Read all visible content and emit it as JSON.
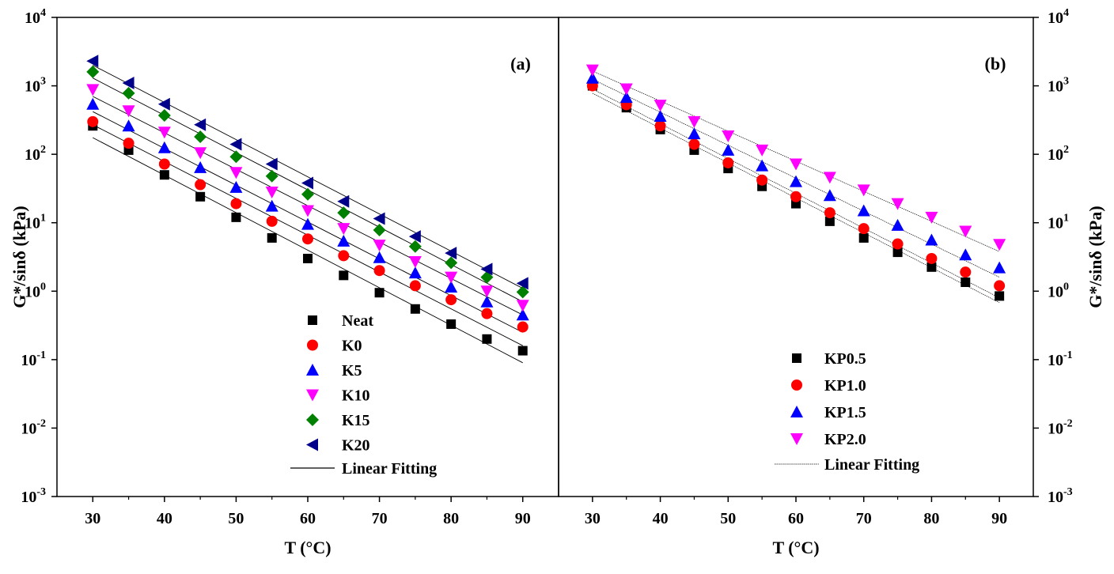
{
  "chart_data": [
    {
      "type": "scatter",
      "panel_label": "(a)",
      "xlabel": "T (°C)",
      "ylabel": "G*/sinδ (kPa)",
      "yscale": "log",
      "xlim": [
        25,
        95
      ],
      "ylim_exp": [
        -3,
        4
      ],
      "x": [
        30,
        35,
        40,
        45,
        50,
        55,
        60,
        65,
        70,
        75,
        80,
        85,
        90
      ],
      "x_ticks": [
        30,
        40,
        50,
        60,
        70,
        80,
        90
      ],
      "y_tick_base": "10",
      "y_tick_exponents": [
        "-3",
        "-2",
        "-1",
        "0",
        "1",
        "2",
        "3",
        "4"
      ],
      "legend_position": "lower-middle",
      "fit_label": "Linear Fitting",
      "series": [
        {
          "name": "Neat",
          "marker": "square",
          "color": "#000000",
          "values": [
            260,
            115,
            50,
            24,
            12,
            6,
            3,
            1.7,
            0.95,
            0.55,
            0.33,
            0.2,
            0.135
          ],
          "fit": [
            175,
            0.09
          ]
        },
        {
          "name": "K0",
          "marker": "circle",
          "color": "#ff0000",
          "values": [
            300,
            145,
            72,
            36,
            19,
            10.5,
            5.8,
            3.3,
            2.0,
            1.2,
            0.75,
            0.47,
            0.3
          ],
          "fit": [
            270,
            0.16
          ]
        },
        {
          "name": "K5",
          "marker": "triangle-up",
          "color": "#0000ff",
          "values": [
            540,
            260,
            125,
            64,
            33,
            17.5,
            9.5,
            5.4,
            3.1,
            1.85,
            1.15,
            0.7,
            0.45
          ],
          "fit": [
            420,
            0.25
          ]
        },
        {
          "name": "K10",
          "marker": "triangle-down",
          "color": "#ff00ff",
          "values": [
            880,
            430,
            210,
            105,
            54,
            28,
            15,
            8.2,
            4.7,
            2.7,
            1.6,
            1.0,
            0.62
          ],
          "fit": [
            700,
            0.45
          ]
        },
        {
          "name": "K15",
          "marker": "diamond",
          "color": "#008000",
          "values": [
            1600,
            780,
            370,
            180,
            92,
            48,
            26,
            14,
            7.8,
            4.5,
            2.6,
            1.6,
            0.97
          ],
          "fit": [
            1300,
            0.7
          ]
        },
        {
          "name": "K20",
          "marker": "triangle-left",
          "color": "#00008b",
          "values": [
            2300,
            1100,
            540,
            270,
            140,
            72,
            38,
            20.5,
            11.5,
            6.3,
            3.6,
            2.1,
            1.3
          ],
          "fit": [
            2000,
            1.1
          ]
        }
      ]
    },
    {
      "type": "scatter",
      "panel_label": "(b)",
      "xlabel": "T (°C)",
      "ylabel": "G*/sinδ (kPa)",
      "yscale": "log",
      "xlim": [
        25,
        95
      ],
      "ylim_exp": [
        -3,
        4
      ],
      "x": [
        30,
        35,
        40,
        45,
        50,
        55,
        60,
        65,
        70,
        75,
        80,
        85,
        90
      ],
      "x_ticks": [
        30,
        40,
        50,
        60,
        70,
        80,
        90
      ],
      "y_tick_base": "10",
      "y_tick_exponents": [
        "-3",
        "-2",
        "-1",
        "0",
        "1",
        "2",
        "3",
        "4"
      ],
      "legend_position": "lower-right",
      "fit_label": "Linear Fitting",
      "series": [
        {
          "name": "KP0.5",
          "marker": "square",
          "color": "#000000",
          "values": [
            1000,
            480,
            230,
            115,
            62,
            34,
            19,
            10.5,
            6.0,
            3.7,
            2.25,
            1.35,
            0.85
          ],
          "fit": [
            780,
            0.68
          ]
        },
        {
          "name": "KP1.0",
          "marker": "circle",
          "color": "#ff0000",
          "values": [
            1000,
            530,
            260,
            140,
            75,
            42,
            24,
            14,
            8.2,
            4.9,
            3.0,
            1.9,
            1.2
          ],
          "fit": [
            900,
            0.8
          ]
        },
        {
          "name": "KP1.5",
          "marker": "triangle-up",
          "color": "#0000ff",
          "values": [
            1300,
            680,
            360,
            200,
            115,
            68,
            40,
            25,
            15,
            9.2,
            5.6,
            3.4,
            2.2
          ],
          "fit": [
            1250,
            1.6
          ]
        },
        {
          "name": "KP2.0",
          "marker": "triangle-down",
          "color": "#ff00ff",
          "values": [
            1700,
            900,
            520,
            300,
            185,
            115,
            72,
            46,
            30,
            19,
            12,
            7.5,
            4.8
          ],
          "fit": [
            1650,
            3.8
          ]
        }
      ]
    }
  ]
}
